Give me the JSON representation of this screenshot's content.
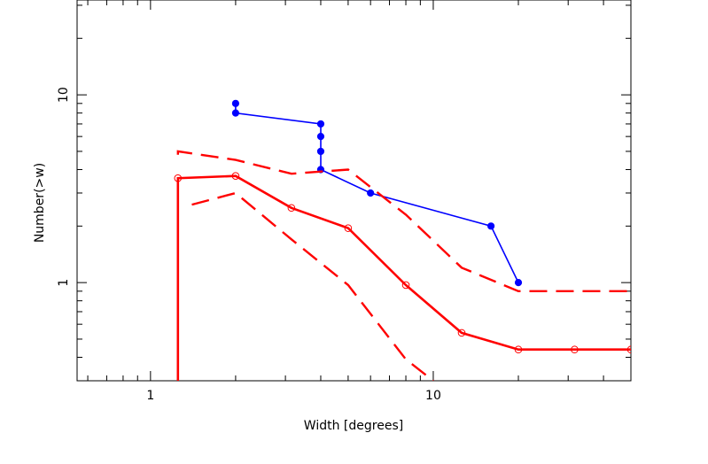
{
  "chart_data": {
    "type": "line",
    "xlabel": "Width [degrees]",
    "ylabel": "Number(>w)",
    "x_scale": "log",
    "y_scale": "log",
    "xlim": [
      0.55,
      50
    ],
    "ylim": [
      0.3,
      32
    ],
    "x_tick_labels": [
      {
        "value": 1,
        "label": "1"
      },
      {
        "value": 10,
        "label": "10"
      }
    ],
    "y_tick_labels": [
      {
        "value": 1,
        "label": "1"
      },
      {
        "value": 10,
        "label": "10"
      }
    ],
    "grid": false,
    "series": [
      {
        "style": "blue-line-filled-markers",
        "color": "#0000ff",
        "x": [
          2,
          2,
          4,
          4,
          4,
          4,
          6,
          16,
          20
        ],
        "y": [
          9,
          8,
          7,
          6,
          5,
          4,
          3,
          2,
          1
        ]
      },
      {
        "style": "red-solid-open-circles",
        "color": "#ff0000",
        "x": [
          1.25,
          1.25,
          2,
          3.15,
          5,
          8,
          12.6,
          20,
          31.6,
          50
        ],
        "y": [
          0.3,
          3.6,
          3.7,
          2.5,
          1.95,
          0.97,
          0.54,
          0.44,
          0.44,
          0.44
        ],
        "marker_from_index": 1
      },
      {
        "style": "red-dashed-upper",
        "color": "#ff0000",
        "x": [
          1.25,
          1.25,
          2,
          3.15,
          5,
          8,
          12.6,
          20,
          31.6,
          50
        ],
        "y": [
          4.8,
          5.0,
          4.5,
          3.8,
          4.0,
          2.3,
          1.2,
          0.9,
          0.9,
          0.9
        ]
      },
      {
        "style": "red-dashed-lower",
        "color": "#ff0000",
        "x": [
          1.4,
          2,
          3.15,
          5,
          8,
          10
        ],
        "y": [
          2.6,
          3.0,
          1.7,
          0.97,
          0.39,
          0.3
        ]
      }
    ]
  }
}
